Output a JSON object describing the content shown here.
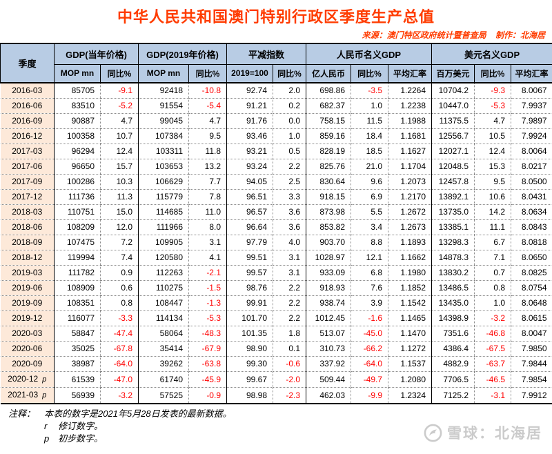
{
  "header": {
    "title": "中华人民共和国澳门特别行政区季度生产总值",
    "source": "来源：澳门特区政府统计暨普查局",
    "maker": "制作：北海居"
  },
  "colors": {
    "title": "#ff3c00",
    "header_bg": "#b8cce4",
    "quarter_bg": "#fde9d9",
    "negative": "#ff0000"
  },
  "chart_data": {
    "type": "table",
    "title": "中华人民共和国澳门特别行政区季度生产总值",
    "column_groups": [
      {
        "label": "季度",
        "subs": []
      },
      {
        "label": "GDP(当年价格)",
        "subs": [
          "MOP mn",
          "同比%"
        ]
      },
      {
        "label": "GDP(2019年价格)",
        "subs": [
          "MOP mn",
          "同比%"
        ]
      },
      {
        "label": "平减指数",
        "subs": [
          "2019=100",
          "同比%"
        ]
      },
      {
        "label": "人民币名义GDP",
        "subs": [
          "亿人民币",
          "同比%",
          "平均汇率"
        ]
      },
      {
        "label": "美元名义GDP",
        "subs": [
          "百万美元",
          "同比%",
          "平均汇率"
        ]
      }
    ],
    "rows": [
      {
        "quarter": "2016-03",
        "flag": "",
        "values": [
          "85705",
          "-9.1",
          "92418",
          "-10.8",
          "92.74",
          "2.0",
          "698.86",
          "-3.5",
          "1.2264",
          "10704.2",
          "-9.3",
          "8.0067"
        ]
      },
      {
        "quarter": "2016-06",
        "flag": "",
        "values": [
          "83510",
          "-5.2",
          "91554",
          "-5.4",
          "91.21",
          "0.2",
          "682.37",
          "1.0",
          "1.2238",
          "10447.0",
          "-5.3",
          "7.9937"
        ]
      },
      {
        "quarter": "2016-09",
        "flag": "",
        "values": [
          "90887",
          "4.7",
          "99045",
          "4.7",
          "91.76",
          "0.0",
          "758.15",
          "11.5",
          "1.1988",
          "11375.5",
          "4.7",
          "7.9897"
        ]
      },
      {
        "quarter": "2016-12",
        "flag": "",
        "values": [
          "100358",
          "10.7",
          "107384",
          "9.5",
          "93.46",
          "1.0",
          "859.16",
          "18.4",
          "1.1681",
          "12556.7",
          "10.5",
          "7.9924"
        ]
      },
      {
        "quarter": "2017-03",
        "flag": "",
        "values": [
          "96294",
          "12.4",
          "103311",
          "11.8",
          "93.21",
          "0.5",
          "828.19",
          "18.5",
          "1.1627",
          "12027.1",
          "12.4",
          "8.0064"
        ]
      },
      {
        "quarter": "2017-06",
        "flag": "",
        "values": [
          "96650",
          "15.7",
          "103653",
          "13.2",
          "93.24",
          "2.2",
          "825.76",
          "21.0",
          "1.1704",
          "12048.5",
          "15.3",
          "8.0217"
        ]
      },
      {
        "quarter": "2017-09",
        "flag": "",
        "values": [
          "100286",
          "10.3",
          "106629",
          "7.7",
          "94.05",
          "2.5",
          "830.64",
          "9.6",
          "1.2073",
          "12457.8",
          "9.5",
          "8.0500"
        ]
      },
      {
        "quarter": "2017-12",
        "flag": "",
        "values": [
          "111736",
          "11.3",
          "115779",
          "7.8",
          "96.51",
          "3.3",
          "918.15",
          "6.9",
          "1.2170",
          "13892.1",
          "10.6",
          "8.0431"
        ]
      },
      {
        "quarter": "2018-03",
        "flag": "",
        "values": [
          "110751",
          "15.0",
          "114685",
          "11.0",
          "96.57",
          "3.6",
          "873.98",
          "5.5",
          "1.2672",
          "13735.0",
          "14.2",
          "8.0634"
        ]
      },
      {
        "quarter": "2018-06",
        "flag": "",
        "values": [
          "108209",
          "12.0",
          "111966",
          "8.0",
          "96.64",
          "3.6",
          "853.82",
          "3.4",
          "1.2673",
          "13385.1",
          "11.1",
          "8.0843"
        ]
      },
      {
        "quarter": "2018-09",
        "flag": "",
        "values": [
          "107475",
          "7.2",
          "109905",
          "3.1",
          "97.79",
          "4.0",
          "903.70",
          "8.8",
          "1.1893",
          "13298.3",
          "6.7",
          "8.0818"
        ]
      },
      {
        "quarter": "2018-12",
        "flag": "",
        "values": [
          "119994",
          "7.4",
          "120580",
          "4.1",
          "99.51",
          "3.1",
          "1028.97",
          "12.1",
          "1.1662",
          "14878.3",
          "7.1",
          "8.0650"
        ]
      },
      {
        "quarter": "2019-03",
        "flag": "",
        "values": [
          "111782",
          "0.9",
          "112263",
          "-2.1",
          "99.57",
          "3.1",
          "933.09",
          "6.8",
          "1.1980",
          "13830.2",
          "0.7",
          "8.0825"
        ]
      },
      {
        "quarter": "2019-06",
        "flag": "",
        "values": [
          "108909",
          "0.6",
          "110275",
          "-1.5",
          "98.76",
          "2.2",
          "918.93",
          "7.6",
          "1.1852",
          "13486.5",
          "0.8",
          "8.0754"
        ]
      },
      {
        "quarter": "2019-09",
        "flag": "",
        "values": [
          "108351",
          "0.8",
          "108447",
          "-1.3",
          "99.91",
          "2.2",
          "938.74",
          "3.9",
          "1.1542",
          "13435.0",
          "1.0",
          "8.0648"
        ]
      },
      {
        "quarter": "2019-12",
        "flag": "",
        "values": [
          "116077",
          "-3.3",
          "114134",
          "-5.3",
          "101.70",
          "2.2",
          "1012.45",
          "-1.6",
          "1.1465",
          "14398.9",
          "-3.2",
          "8.0615"
        ]
      },
      {
        "quarter": "2020-03",
        "flag": "",
        "values": [
          "58847",
          "-47.4",
          "58064",
          "-48.3",
          "101.35",
          "1.8",
          "513.07",
          "-45.0",
          "1.1470",
          "7351.6",
          "-46.8",
          "8.0047"
        ]
      },
      {
        "quarter": "2020-06",
        "flag": "",
        "values": [
          "35025",
          "-67.8",
          "35414",
          "-67.9",
          "98.90",
          "0.1",
          "310.73",
          "-66.2",
          "1.1272",
          "4386.4",
          "-67.5",
          "7.9850"
        ]
      },
      {
        "quarter": "2020-09",
        "flag": "",
        "values": [
          "38987",
          "-64.0",
          "39262",
          "-63.8",
          "99.30",
          "-0.6",
          "337.92",
          "-64.0",
          "1.1537",
          "4882.9",
          "-63.7",
          "7.9844"
        ]
      },
      {
        "quarter": "2020-12",
        "flag": "p",
        "values": [
          "61539",
          "-47.0",
          "61740",
          "-45.9",
          "99.67",
          "-2.0",
          "509.44",
          "-49.7",
          "1.2080",
          "7706.5",
          "-46.5",
          "7.9854"
        ]
      },
      {
        "quarter": "2021-03",
        "flag": "p",
        "values": [
          "56939",
          "-3.2",
          "57525",
          "-0.9",
          "98.98",
          "-2.3",
          "462.03",
          "-9.9",
          "1.2324",
          "7125.2",
          "-3.1",
          "7.9912"
        ]
      }
    ]
  },
  "notes": {
    "label": "注释：",
    "line1": "本表的数字是2021年5月28日发表的最新数据。",
    "r_key": "r",
    "r_text": "修订数字。",
    "p_key": "p",
    "p_text": "初步数字。"
  },
  "watermark": {
    "text": "雪球：北海居"
  }
}
